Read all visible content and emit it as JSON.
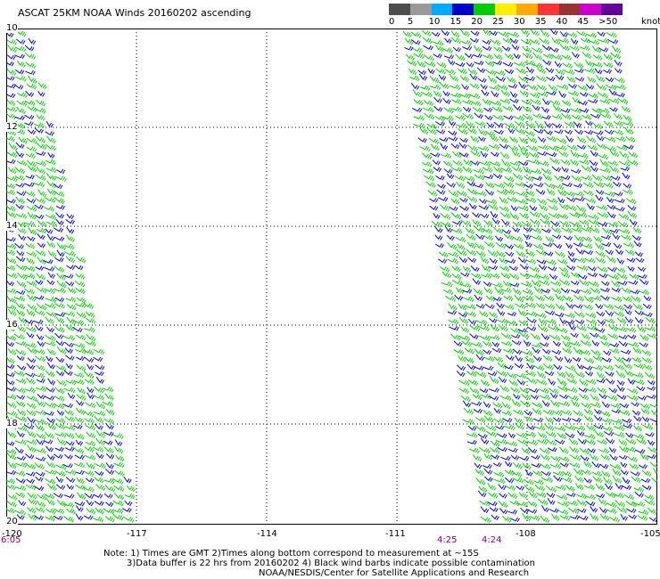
{
  "title": "ASCAT 25KM NOAA Winds 20160202 ascending",
  "legend": {
    "unit_label": "knots",
    "tick_labels": [
      "0",
      "5",
      "10",
      "15",
      "20",
      "25",
      "30",
      "35",
      "40",
      "45",
      ">50"
    ],
    "colors": [
      "#4d4d4d",
      "#999999",
      "#00aaff",
      "#0000cc",
      "#00cc00",
      "#ffee00",
      "#ffaa00",
      "#ff3333",
      "#993333",
      "#cc00cc",
      "#660099"
    ]
  },
  "map": {
    "lat_labels": [
      "10",
      "12",
      "14",
      "16",
      "18",
      "20"
    ],
    "lon_labels": [
      "-120",
      "-117",
      "-114",
      "-111",
      "-108",
      "-105"
    ],
    "time_labels": [
      "6:05",
      "4:25",
      "4:24"
    ],
    "barb_colors": {
      "low": "#0000cc",
      "mid": "#00cc00"
    },
    "swaths": [
      {
        "name": "west-swath",
        "coverage": "-120 to -116.9 lon, 10N to 20N"
      },
      {
        "name": "east-swath",
        "coverage": "-110.3 to -105 lon, 10N to 20N"
      }
    ]
  },
  "notes": {
    "line1": "Note: 1) Times are GMT 2)Times along bottom correspond to measurement at ~15S",
    "line2": "3)Data buffer is 22 hrs from 20160202 4) Black wind barbs indicate possible contamination",
    "line3": "NOAA/NESDIS/Center for Satellite Applications and Research"
  }
}
